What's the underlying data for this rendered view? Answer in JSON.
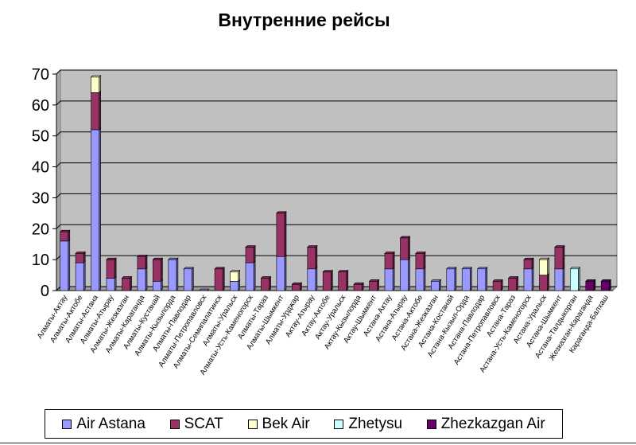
{
  "chart_data": {
    "type": "bar",
    "stacked": true,
    "title": "Внутренние рейсы",
    "ylim": [
      0,
      70
    ],
    "yticks": [
      0,
      10,
      20,
      30,
      40,
      50,
      60,
      70
    ],
    "grid": true,
    "legend_position": "bottom",
    "categories": [
      "Алматы-Актау",
      "Алматы-Актобе",
      "Алматы-Астана",
      "Алматы-Атырау",
      "Алматы-Жезказган",
      "Алматы-Караганда",
      "Алматы-Кустанай",
      "Алматы-Кызылорда",
      "Алматы-Павлодар",
      "Алматы-Петропавловск",
      "Алматы-Семипалатинск",
      "Алматы-Уральск",
      "Алматы-Усть-Каменогорск",
      "Алматы-Тараз",
      "Алматы-Шымкент",
      "Алматы-Урджар",
      "Актау-Атырау",
      "Актау-Актобе",
      "Актау-Уральск",
      "Актау-Кызылорда",
      "Актау-Шымкент",
      "Астана-Актау",
      "Астана-Атырау",
      "Астана-Актобе",
      "Астана-Жезказган",
      "Астана-Костанай",
      "Астана-Кызыл-Орда",
      "Астана-Павлодар",
      "Астана-Петропавловск",
      "Астана-Тараз",
      "Астана-Усть-Каменогорск",
      "Астана-Уральск",
      "Астана-Шымкент",
      "Астана-Талдыкорган",
      "Жезказган-Караганда",
      "Караганда-Балхаш"
    ],
    "series": [
      {
        "name": "Air Astana",
        "color": "#9999FF",
        "values": [
          16,
          9,
          52,
          4,
          0,
          7,
          3,
          10,
          7,
          0,
          0,
          3,
          9,
          0,
          11,
          0,
          7,
          0,
          0,
          0,
          0,
          7,
          10,
          7,
          3,
          7,
          7,
          7,
          0,
          0,
          7,
          0,
          7,
          0,
          0,
          0
        ]
      },
      {
        "name": "SCAT",
        "color": "#993366",
        "values": [
          3,
          3,
          12,
          6,
          4,
          4,
          7,
          0,
          0,
          0,
          7,
          0,
          5,
          4,
          14,
          2,
          7,
          6,
          6,
          2,
          3,
          5,
          7,
          5,
          0,
          0,
          0,
          0,
          3,
          4,
          3,
          5,
          7,
          0,
          0,
          0
        ]
      },
      {
        "name": "Bek Air",
        "color": "#FFFFCC",
        "values": [
          0,
          0,
          5,
          0,
          0,
          0,
          0,
          0,
          0,
          0,
          0,
          3,
          0,
          0,
          0,
          0,
          0,
          0,
          0,
          0,
          0,
          0,
          0,
          0,
          0,
          0,
          0,
          0,
          0,
          0,
          0,
          5,
          0,
          0,
          0,
          0
        ]
      },
      {
        "name": "Zhetysu",
        "color": "#CCFFFF",
        "values": [
          0,
          0,
          0,
          0,
          0,
          0,
          0,
          0,
          0,
          0,
          0,
          0,
          0,
          0,
          0,
          0,
          0,
          0,
          0,
          0,
          0,
          0,
          0,
          0,
          0,
          0,
          0,
          0,
          0,
          0,
          0,
          0,
          0,
          7,
          0,
          0
        ]
      },
      {
        "name": "Zhezkazgan Air",
        "color": "#660066",
        "values": [
          0,
          0,
          0,
          0,
          0,
          0,
          0,
          0,
          0,
          0,
          0,
          0,
          0,
          0,
          0,
          0,
          0,
          0,
          0,
          0,
          0,
          0,
          0,
          0,
          0,
          0,
          0,
          0,
          0,
          0,
          0,
          0,
          0,
          0,
          3,
          3
        ]
      }
    ]
  }
}
